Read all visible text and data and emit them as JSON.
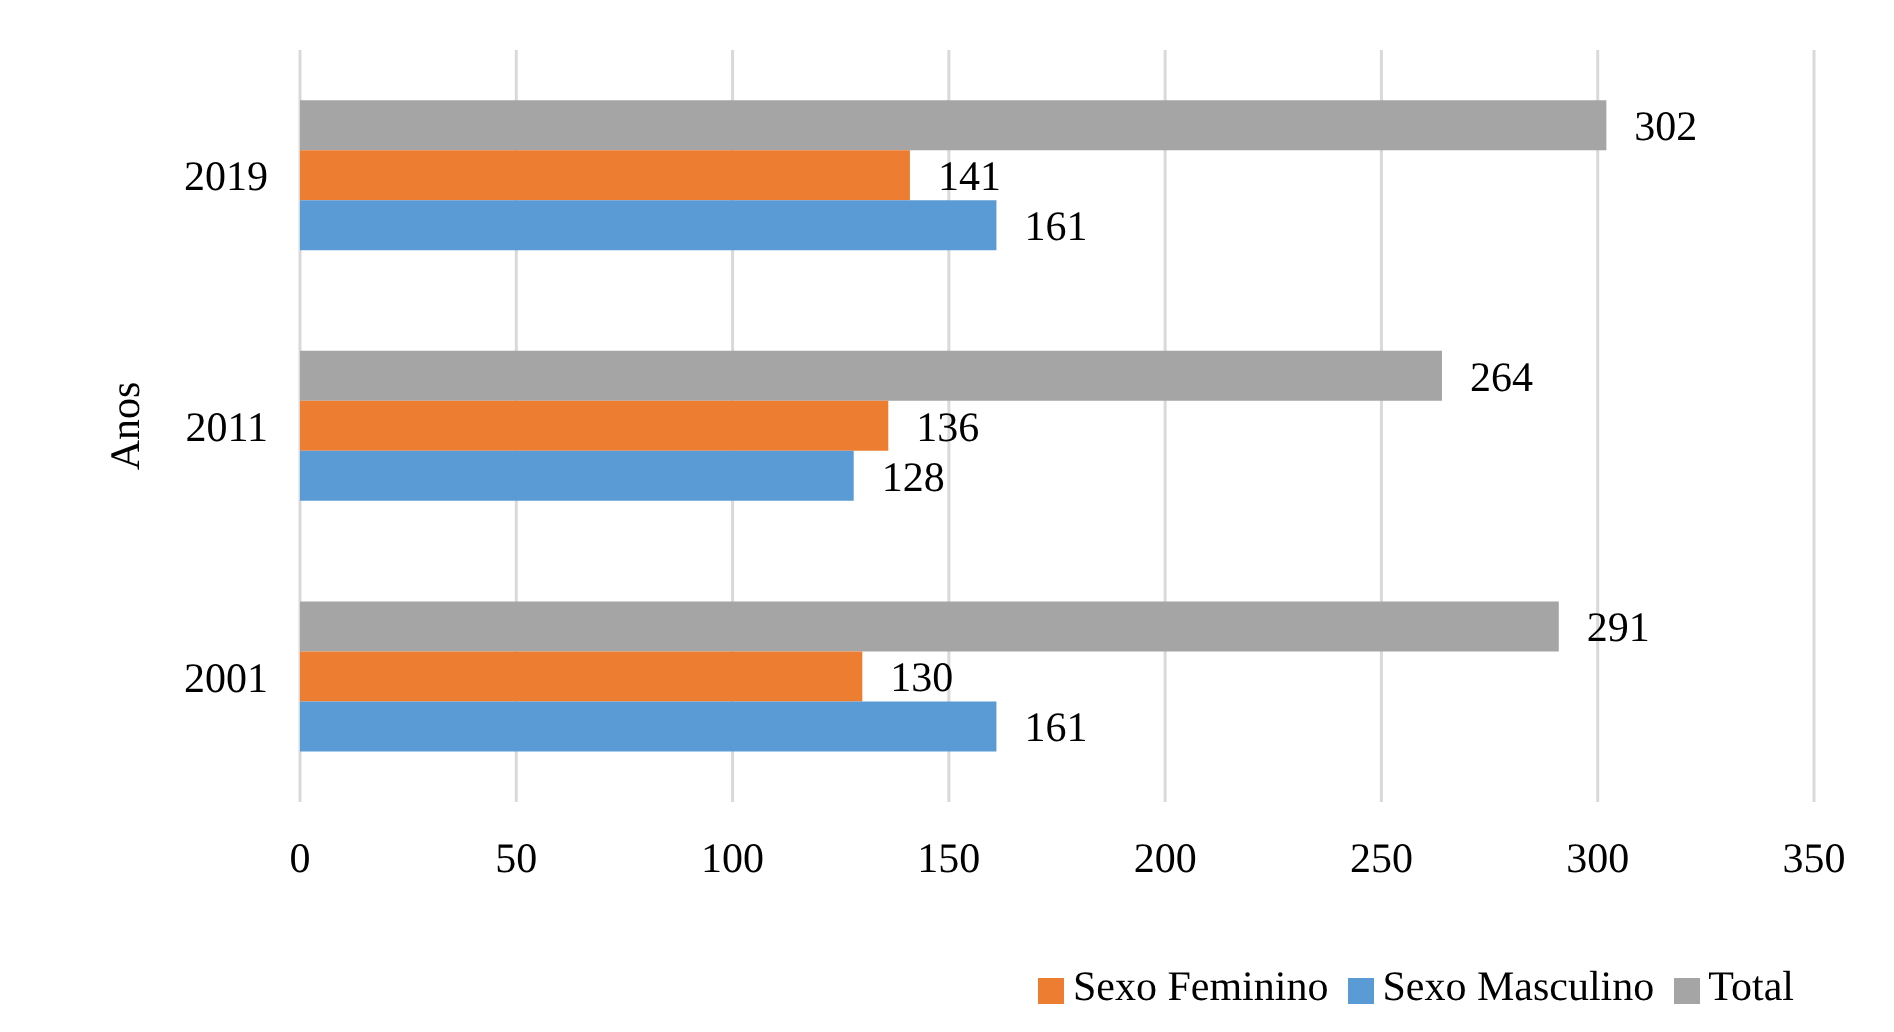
{
  "chart_data": {
    "type": "bar",
    "orientation": "horizontal",
    "ylabel": "Anos",
    "categories": [
      "2019",
      "2011",
      "2001"
    ],
    "series": [
      {
        "name": "Total",
        "color": "#a5a5a5",
        "values": [
          302,
          264,
          291
        ]
      },
      {
        "name": "Sexo Feminino",
        "color": "#ed7d31",
        "values": [
          141,
          136,
          130
        ]
      },
      {
        "name": "Sexo Masculino",
        "color": "#5b9bd5",
        "values": [
          161,
          128,
          161
        ]
      }
    ],
    "xlim": [
      0,
      350
    ],
    "xticks": [
      0,
      50,
      100,
      150,
      200,
      250,
      300,
      350
    ],
    "grid": "x",
    "legend": "bottom right",
    "data_labels": true
  }
}
